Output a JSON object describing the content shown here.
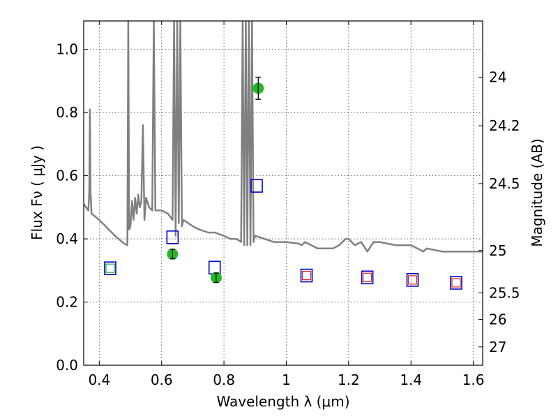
{
  "chart_data": {
    "type": "scatter",
    "xlabel": "Wavelength  λ (μm)",
    "ylabel": "Flux  Fν  ( μJy )",
    "ylabel_right": "Magnitude (AB)",
    "xlim": [
      0.35,
      1.63
    ],
    "ylim": [
      0.0,
      1.09
    ],
    "x_ticks": [
      0.4,
      0.6,
      0.8,
      1.0,
      1.2,
      1.4,
      1.6
    ],
    "x_tick_labels": [
      "0.4",
      "0.6",
      "0.8",
      "1",
      "1.2",
      "1.4",
      "1.6"
    ],
    "y_ticks": [
      0.0,
      0.2,
      0.4,
      0.6,
      0.8,
      1.0
    ],
    "y_tick_labels": [
      "0.0",
      "0.2",
      "0.4",
      "0.6",
      "0.8",
      "1.0"
    ],
    "right_ticks": [
      {
        "label": "24",
        "flux": 0.912
      },
      {
        "label": "24.2",
        "flux": 0.758
      },
      {
        "label": "24.5",
        "flux": 0.575
      },
      {
        "label": "25",
        "flux": 0.363
      },
      {
        "label": "25.5",
        "flux": 0.229
      },
      {
        "label": "26",
        "flux": 0.145
      },
      {
        "label": "27",
        "flux": 0.058
      }
    ],
    "grid": true,
    "colors": {
      "model": "#808080",
      "observed": "#22bb22",
      "model_photometry": "#0000cc",
      "red_squares": "#dd2222",
      "green_square": "#22aa22"
    },
    "model_spectrum": {
      "x": [
        0.35,
        0.365,
        0.368,
        0.37,
        0.372,
        0.375,
        0.4,
        0.45,
        0.48,
        0.49,
        0.493,
        0.496,
        0.5,
        0.505,
        0.51,
        0.515,
        0.52,
        0.525,
        0.53,
        0.535,
        0.54,
        0.545,
        0.55,
        0.56,
        0.57,
        0.575,
        0.58,
        0.6,
        0.62,
        0.635,
        0.64,
        0.645,
        0.65,
        0.655,
        0.66,
        0.665,
        0.67,
        0.7,
        0.72,
        0.75,
        0.77,
        0.8,
        0.82,
        0.84,
        0.855,
        0.86,
        0.865,
        0.87,
        0.875,
        0.88,
        0.885,
        0.89,
        0.895,
        0.9,
        0.93,
        0.96,
        1.0,
        1.04,
        1.05,
        1.06,
        1.1,
        1.15,
        1.17,
        1.19,
        1.2,
        1.22,
        1.24,
        1.26,
        1.28,
        1.3,
        1.35,
        1.4,
        1.44,
        1.45,
        1.5,
        1.55,
        1.6,
        1.63
      ],
      "y": [
        0.51,
        0.49,
        0.55,
        0.81,
        0.55,
        0.48,
        0.46,
        0.41,
        0.385,
        0.38,
        1.09,
        0.43,
        0.44,
        0.52,
        0.46,
        0.53,
        0.48,
        0.54,
        0.5,
        0.52,
        0.76,
        0.46,
        0.53,
        0.5,
        0.49,
        1.09,
        0.49,
        0.49,
        0.48,
        0.46,
        1.09,
        0.41,
        1.09,
        0.45,
        1.09,
        0.44,
        0.46,
        0.44,
        0.43,
        0.42,
        0.42,
        0.41,
        0.4,
        0.4,
        0.39,
        1.09,
        0.38,
        1.09,
        0.38,
        1.09,
        0.38,
        1.09,
        0.39,
        0.41,
        0.4,
        0.39,
        0.39,
        0.385,
        0.38,
        0.39,
        0.37,
        0.37,
        0.38,
        0.4,
        0.4,
        0.38,
        0.39,
        0.36,
        0.39,
        0.39,
        0.38,
        0.38,
        0.36,
        0.37,
        0.36,
        0.36,
        0.36,
        0.36
      ]
    },
    "observed": {
      "x": [
        0.635,
        0.775,
        0.91
      ],
      "y": [
        0.352,
        0.277,
        0.877
      ],
      "yerr": [
        0.015,
        0.015,
        0.035
      ]
    },
    "model_photometry": {
      "x": [
        0.435,
        0.635,
        0.77,
        0.905,
        1.065,
        1.26,
        1.405,
        1.545
      ],
      "y": [
        0.307,
        0.405,
        0.309,
        0.568,
        0.284,
        0.278,
        0.27,
        0.261
      ]
    },
    "red_squares": {
      "x": [
        1.065,
        1.26,
        1.405,
        1.545
      ],
      "y": [
        0.284,
        0.278,
        0.27,
        0.261
      ]
    },
    "green_square": {
      "x": [
        0.435
      ],
      "y": [
        0.307
      ]
    }
  }
}
